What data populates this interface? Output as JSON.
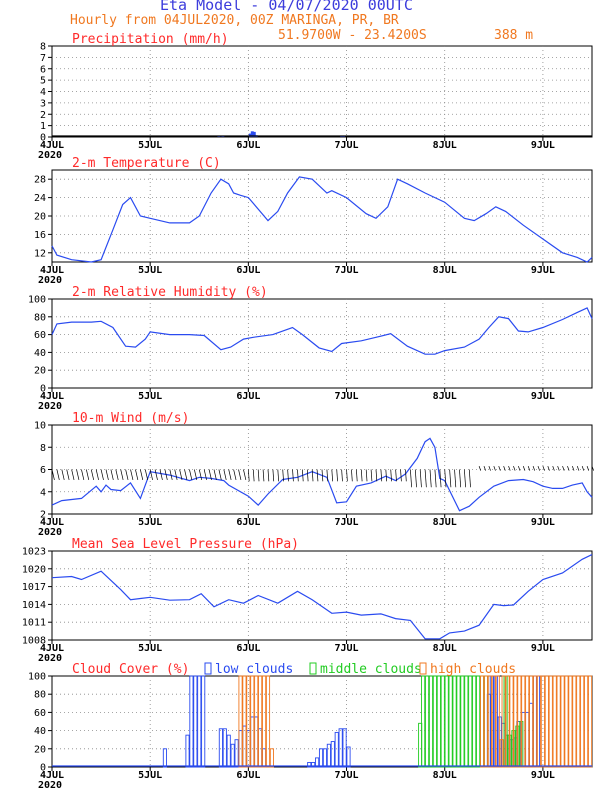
{
  "header": {
    "title": "Eta Model - 04/07/2020 00UTC",
    "subtitle": "Hourly from 04JUL2020, 00Z  MARINGA, PR, BR",
    "coords": "51.9700W - 23.4200S",
    "elevation": "388  m"
  },
  "colors": {
    "title": "#3c3cdc",
    "info": "#f07820",
    "panel_title": "#ff2a2a",
    "line": "#2a4bf0",
    "low": "#2a4bf0",
    "mid": "#22cc22",
    "high": "#f07820"
  },
  "x_axis": {
    "ticks": [
      "4JUL",
      "5JUL",
      "6JUL",
      "7JUL",
      "8JUL",
      "9JUL"
    ],
    "tick_days": [
      0,
      1,
      2,
      3,
      4,
      5
    ],
    "year": "2020",
    "range_days": [
      0,
      5.5
    ]
  },
  "chart_data": [
    {
      "type": "bar",
      "title": "Precipitation (mm/h)",
      "ylim": [
        0,
        8
      ],
      "yticks": [
        0,
        1,
        2,
        3,
        4,
        5,
        6,
        7,
        8
      ],
      "bars": [
        [
          1.7,
          0.05
        ],
        [
          1.74,
          0.06
        ],
        [
          2.02,
          0.3
        ],
        [
          2.04,
          0.5
        ],
        [
          2.06,
          0.45
        ],
        [
          2.08,
          0.15
        ],
        [
          2.95,
          0.08
        ],
        [
          2.97,
          0.12
        ]
      ]
    },
    {
      "type": "line",
      "title": "2-m Temperature (C)",
      "ylim": [
        10,
        30
      ],
      "yticks": [
        12,
        16,
        20,
        24,
        28
      ],
      "x": [
        0,
        0.05,
        0.2,
        0.4,
        0.5,
        0.62,
        0.72,
        0.8,
        0.9,
        1.0,
        1.2,
        1.4,
        1.5,
        1.62,
        1.72,
        1.8,
        1.85,
        1.92,
        2.0,
        2.2,
        2.3,
        2.4,
        2.52,
        2.65,
        2.8,
        2.85,
        3.0,
        3.2,
        3.3,
        3.42,
        3.52,
        3.62,
        3.8,
        4.0,
        4.2,
        4.3,
        4.42,
        4.52,
        4.62,
        4.8,
        5.0,
        5.2,
        5.35,
        5.45,
        5.5
      ],
      "y": [
        13.5,
        11.5,
        10.5,
        10,
        10.5,
        17,
        22.5,
        24,
        20,
        19.5,
        18.5,
        18.5,
        20,
        25,
        28,
        27,
        25,
        24.5,
        24,
        19,
        21,
        25,
        28.5,
        28,
        25,
        25.5,
        24,
        20.5,
        19.5,
        22,
        28,
        27,
        25,
        23,
        19.5,
        19,
        20.5,
        22,
        21,
        18,
        15,
        12,
        11,
        10,
        11
      ]
    },
    {
      "type": "line",
      "title": "2-m Relative Humidity (%)",
      "ylim": [
        0,
        100
      ],
      "yticks": [
        0,
        20,
        40,
        60,
        80,
        100
      ],
      "x": [
        0,
        0.05,
        0.2,
        0.4,
        0.5,
        0.62,
        0.75,
        0.85,
        0.95,
        1.0,
        1.2,
        1.4,
        1.55,
        1.72,
        1.82,
        1.95,
        2.05,
        2.25,
        2.45,
        2.55,
        2.72,
        2.85,
        2.95,
        3.15,
        3.3,
        3.45,
        3.62,
        3.8,
        3.9,
        4.0,
        4.2,
        4.35,
        4.45,
        4.55,
        4.65,
        4.75,
        4.85,
        5.0,
        5.2,
        5.35,
        5.45,
        5.5
      ],
      "y": [
        60,
        72,
        74,
        74,
        75,
        68,
        47,
        46,
        55,
        63,
        60,
        60,
        59,
        43,
        46,
        55,
        57,
        60,
        68,
        60,
        45,
        41,
        50,
        53,
        57,
        61,
        47,
        38,
        38,
        42,
        46,
        55,
        68,
        80,
        78,
        64,
        63,
        68,
        77,
        85,
        90,
        78
      ]
    },
    {
      "type": "line",
      "title": "10-m Wind (m/s)",
      "ylim": [
        2,
        10
      ],
      "yticks": [
        2,
        4,
        6,
        8,
        10
      ],
      "x": [
        0,
        0.1,
        0.3,
        0.45,
        0.5,
        0.55,
        0.6,
        0.7,
        0.8,
        0.9,
        1.0,
        1.2,
        1.4,
        1.5,
        1.62,
        1.75,
        1.8,
        2.0,
        2.1,
        2.2,
        2.35,
        2.5,
        2.65,
        2.8,
        2.9,
        3.0,
        3.1,
        3.25,
        3.4,
        3.5,
        3.6,
        3.72,
        3.8,
        3.85,
        3.9,
        3.95,
        4.0,
        4.15,
        4.25,
        4.35,
        4.5,
        4.65,
        4.8,
        4.9,
        5.0,
        5.1,
        5.2,
        5.3,
        5.4,
        5.45,
        5.5
      ],
      "y": [
        2.8,
        3.2,
        3.4,
        4.5,
        4.0,
        4.6,
        4.2,
        4.1,
        4.8,
        3.4,
        5.8,
        5.5,
        5.0,
        5.3,
        5.2,
        5.0,
        4.6,
        3.6,
        2.8,
        3.8,
        5.1,
        5.3,
        5.8,
        5.3,
        3.0,
        3.1,
        4.5,
        4.8,
        5.4,
        5.0,
        5.6,
        7.0,
        8.5,
        8.8,
        8.0,
        5.2,
        5.0,
        2.3,
        2.7,
        3.5,
        4.5,
        5.0,
        5.1,
        4.9,
        4.5,
        4.3,
        4.3,
        4.6,
        4.8,
        4.0,
        3.5
      ]
    },
    {
      "type": "line",
      "title": "Mean Sea Level Pressure (hPa)",
      "ylim": [
        1008,
        1023
      ],
      "yticks": [
        1008,
        1011,
        1014,
        1017,
        1020,
        1023
      ],
      "x": [
        0,
        0.2,
        0.3,
        0.5,
        0.7,
        0.8,
        0.9,
        1.0,
        1.2,
        1.4,
        1.52,
        1.65,
        1.8,
        1.95,
        2.1,
        2.3,
        2.5,
        2.65,
        2.85,
        3.0,
        3.15,
        3.35,
        3.5,
        3.65,
        3.8,
        3.95,
        4.05,
        4.2,
        4.35,
        4.5,
        4.6,
        4.7,
        4.85,
        5.0,
        5.2,
        5.4,
        5.5
      ],
      "y": [
        1018.5,
        1018.7,
        1018.2,
        1019.6,
        1016.5,
        1014.8,
        1015,
        1015.2,
        1014.7,
        1014.8,
        1015.8,
        1013.6,
        1014.8,
        1014.2,
        1015.5,
        1014.2,
        1016.2,
        1014.8,
        1012.5,
        1012.7,
        1012.2,
        1012.4,
        1011.6,
        1011.3,
        1008.2,
        1008.2,
        1009.2,
        1009.5,
        1010.5,
        1014,
        1013.8,
        1013.9,
        1016.2,
        1018.2,
        1019.3,
        1021.6,
        1022.4
      ]
    },
    {
      "type": "bar",
      "title": "Cloud Cover (%)",
      "ylim": [
        0,
        100
      ],
      "yticks": [
        0,
        20,
        40,
        60,
        80,
        100
      ],
      "legend": [
        "low clouds",
        "middle clouds",
        "high clouds"
      ],
      "low": [
        [
          1.15,
          20
        ],
        [
          1.38,
          35
        ],
        [
          1.42,
          100
        ],
        [
          1.46,
          100
        ],
        [
          1.5,
          100
        ],
        [
          1.54,
          100
        ],
        [
          1.72,
          42
        ],
        [
          1.76,
          42
        ],
        [
          1.8,
          35
        ],
        [
          1.84,
          25
        ],
        [
          1.88,
          30
        ],
        [
          1.92,
          40
        ],
        [
          1.96,
          45
        ],
        [
          2.0,
          40
        ],
        [
          2.04,
          55
        ],
        [
          2.08,
          55
        ],
        [
          2.12,
          42
        ],
        [
          2.16,
          20
        ],
        [
          2.62,
          5
        ],
        [
          2.66,
          5
        ],
        [
          2.7,
          10
        ],
        [
          2.74,
          20
        ],
        [
          2.78,
          20
        ],
        [
          2.82,
          25
        ],
        [
          2.86,
          28
        ],
        [
          2.9,
          38
        ],
        [
          2.94,
          42
        ],
        [
          2.98,
          42
        ],
        [
          3.02,
          22
        ],
        [
          4.45,
          80
        ],
        [
          4.48,
          100
        ],
        [
          4.52,
          100
        ],
        [
          4.56,
          55
        ],
        [
          4.6,
          48
        ],
        [
          4.64,
          35
        ],
        [
          4.68,
          30
        ],
        [
          4.72,
          32
        ],
        [
          4.75,
          50
        ],
        [
          4.8,
          60
        ],
        [
          4.84,
          60
        ],
        [
          4.88,
          70
        ],
        [
          4.92,
          100
        ],
        [
          4.95,
          100
        ]
      ],
      "mid": [
        [
          3.75,
          48
        ],
        [
          3.78,
          100
        ],
        [
          3.82,
          100
        ],
        [
          3.86,
          100
        ],
        [
          3.9,
          100
        ],
        [
          3.94,
          100
        ],
        [
          3.98,
          100
        ],
        [
          4.02,
          100
        ],
        [
          4.06,
          100
        ],
        [
          4.1,
          100
        ],
        [
          4.14,
          100
        ],
        [
          4.18,
          100
        ],
        [
          4.22,
          100
        ],
        [
          4.26,
          100
        ],
        [
          4.3,
          100
        ],
        [
          4.34,
          100
        ],
        [
          4.38,
          100
        ],
        [
          4.42,
          100
        ],
        [
          4.62,
          100
        ],
        [
          4.66,
          35
        ],
        [
          4.7,
          40
        ],
        [
          4.74,
          45
        ],
        [
          4.78,
          50
        ]
      ],
      "high": [
        [
          1.92,
          100
        ],
        [
          1.96,
          100
        ],
        [
          2.0,
          100
        ],
        [
          2.04,
          100
        ],
        [
          2.08,
          100
        ],
        [
          2.12,
          100
        ],
        [
          2.16,
          100
        ],
        [
          2.2,
          100
        ],
        [
          2.24,
          20
        ],
        [
          4.38,
          100
        ],
        [
          4.42,
          100
        ],
        [
          4.46,
          100
        ],
        [
          4.5,
          100
        ],
        [
          4.54,
          100
        ],
        [
          4.58,
          30
        ],
        [
          4.6,
          100
        ],
        [
          4.64,
          100
        ],
        [
          4.68,
          100
        ],
        [
          4.72,
          100
        ],
        [
          4.76,
          100
        ],
        [
          4.8,
          100
        ],
        [
          4.84,
          100
        ],
        [
          4.88,
          100
        ],
        [
          4.92,
          100
        ],
        [
          4.96,
          100
        ],
        [
          5.0,
          100
        ],
        [
          5.04,
          100
        ],
        [
          5.08,
          100
        ],
        [
          5.12,
          100
        ],
        [
          5.16,
          100
        ],
        [
          5.2,
          100
        ],
        [
          5.24,
          100
        ],
        [
          5.28,
          100
        ],
        [
          5.32,
          100
        ],
        [
          5.36,
          100
        ],
        [
          5.4,
          100
        ],
        [
          5.44,
          100
        ],
        [
          5.48,
          100
        ]
      ]
    }
  ]
}
